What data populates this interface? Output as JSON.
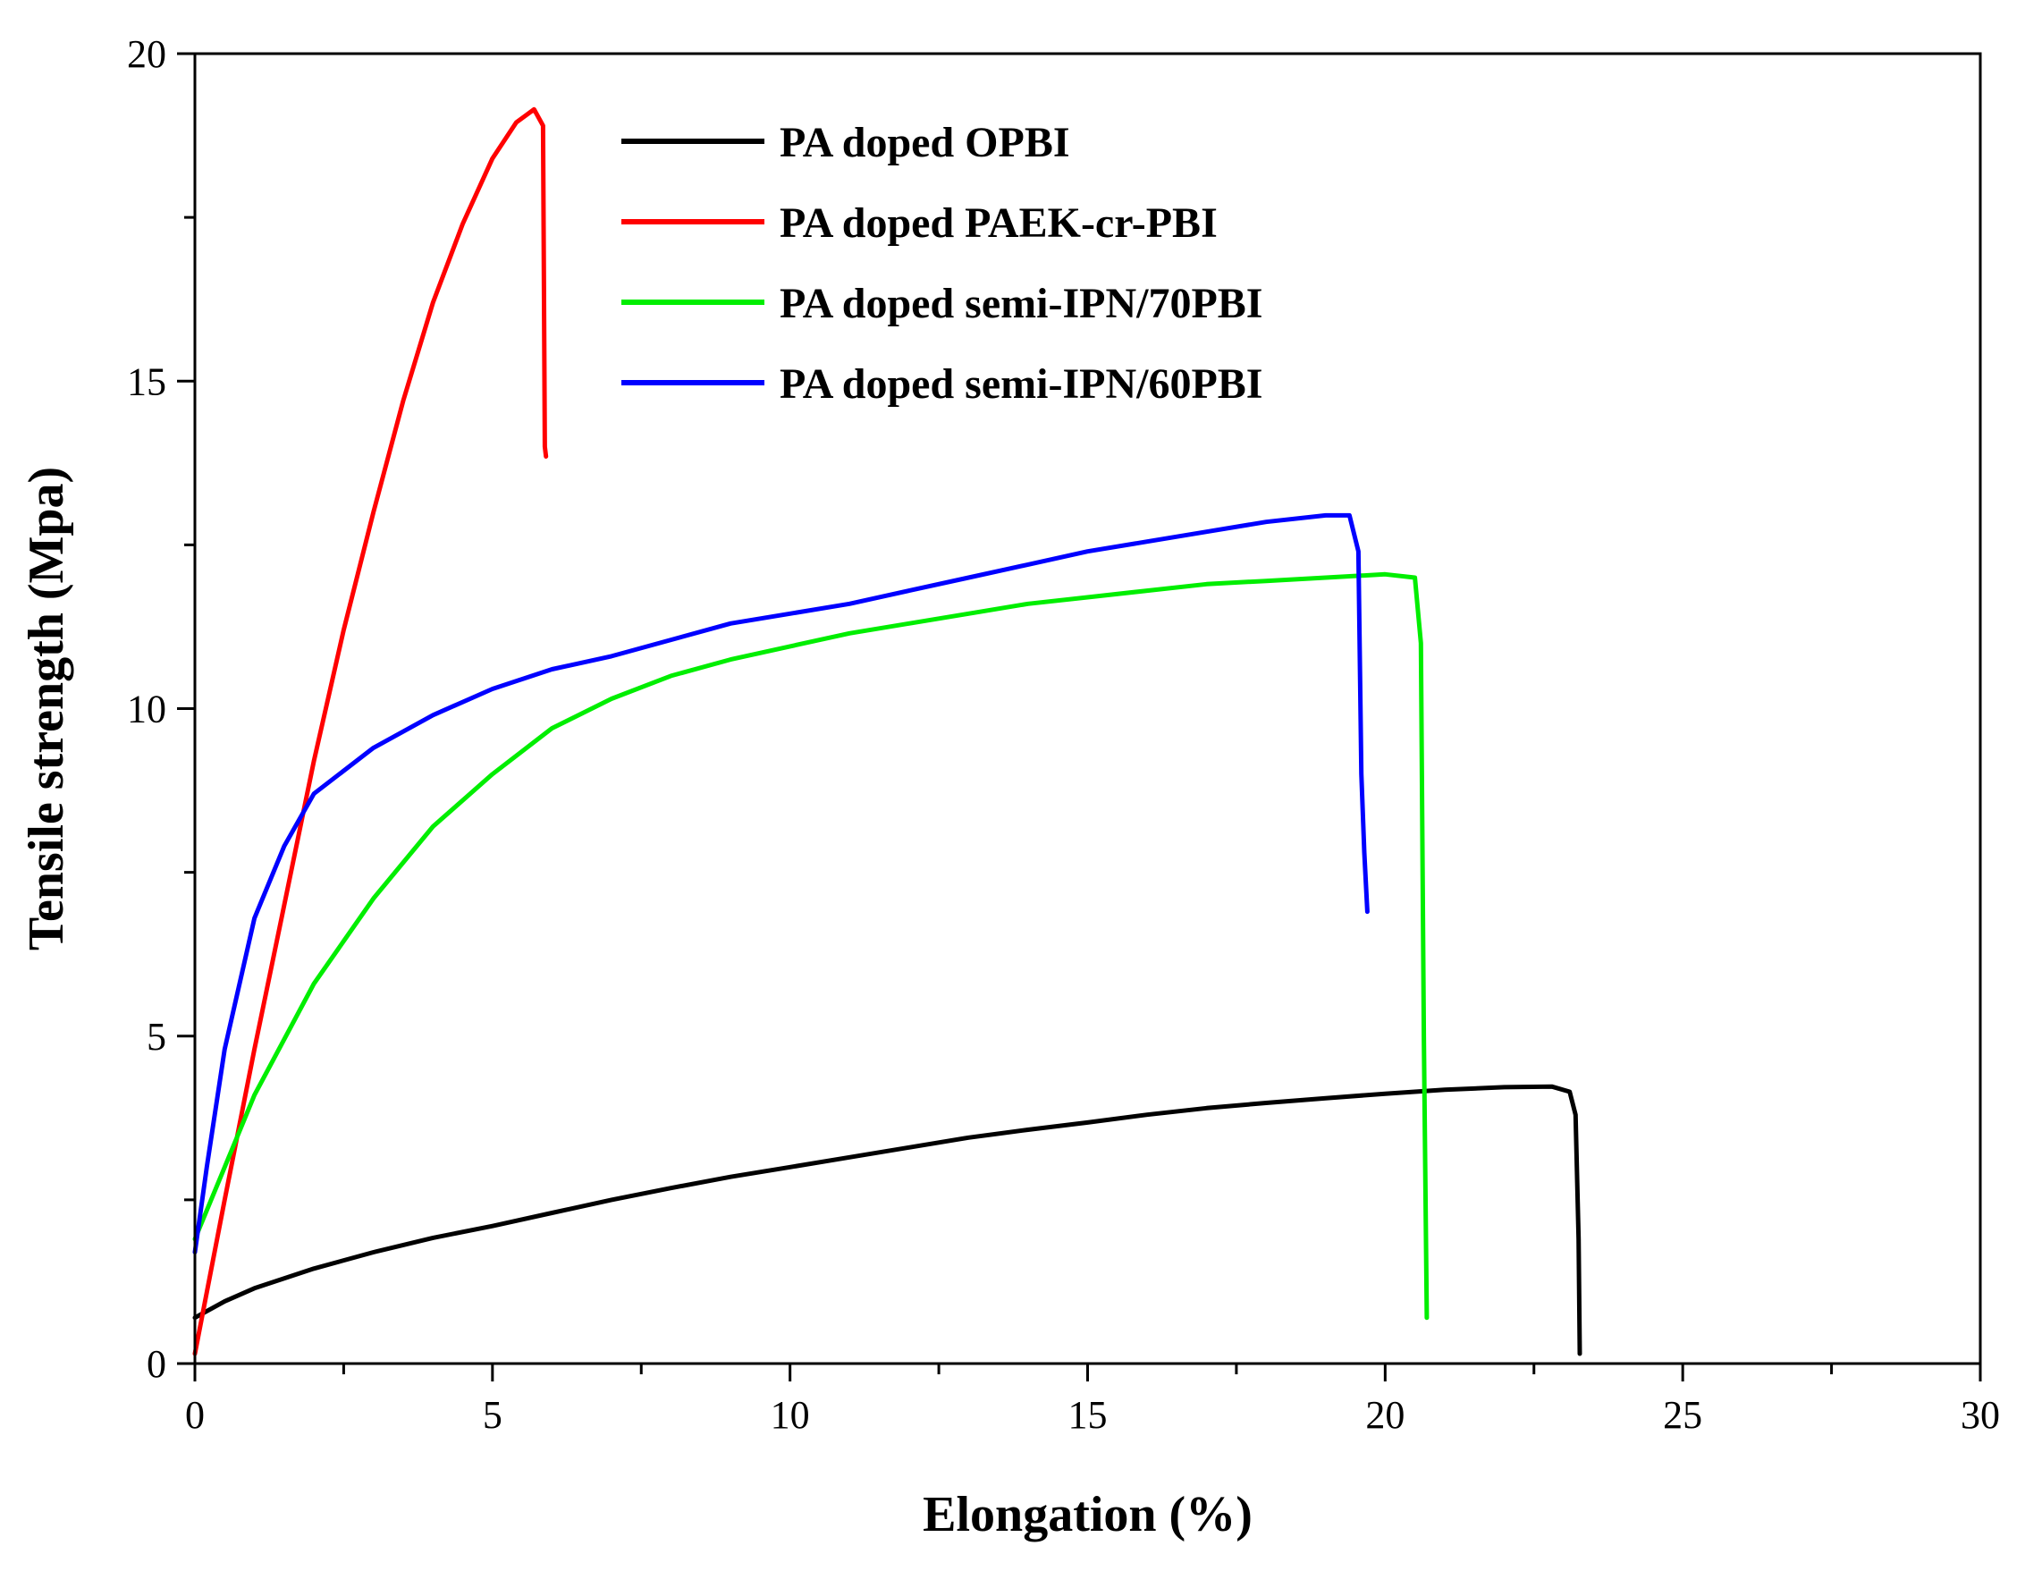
{
  "chart_data": {
    "type": "line",
    "title": "",
    "xlabel": "Elongation (%)",
    "ylabel": "Tensile strength (Mpa)",
    "xlim": [
      0,
      30
    ],
    "ylim": [
      0,
      20
    ],
    "xticks": [
      "0",
      "5",
      "10",
      "15",
      "20",
      "25",
      "30"
    ],
    "yticks": [
      "0",
      "5",
      "10",
      "15",
      "20"
    ],
    "grid": false,
    "legend_position": "top-center",
    "series": [
      {
        "name": "PA doped OPBI",
        "color": "#000000",
        "points": [
          [
            0,
            0.7
          ],
          [
            0.5,
            0.95
          ],
          [
            1,
            1.15
          ],
          [
            2,
            1.45
          ],
          [
            3,
            1.7
          ],
          [
            4,
            1.92
          ],
          [
            5,
            2.1
          ],
          [
            6,
            2.3
          ],
          [
            7,
            2.5
          ],
          [
            8,
            2.68
          ],
          [
            9,
            2.85
          ],
          [
            10,
            3.0
          ],
          [
            11,
            3.15
          ],
          [
            12,
            3.3
          ],
          [
            13,
            3.45
          ],
          [
            14,
            3.57
          ],
          [
            15,
            3.68
          ],
          [
            16,
            3.8
          ],
          [
            17,
            3.9
          ],
          [
            18,
            3.98
          ],
          [
            19,
            4.05
          ],
          [
            20,
            4.12
          ],
          [
            21,
            4.18
          ],
          [
            22,
            4.22
          ],
          [
            22.8,
            4.23
          ],
          [
            23.1,
            4.15
          ],
          [
            23.2,
            3.8
          ],
          [
            23.25,
            1.9
          ],
          [
            23.27,
            0.15
          ]
        ]
      },
      {
        "name": "PA doped PAEK-cr-PBI",
        "color": "#ff0000",
        "points": [
          [
            0,
            0.15
          ],
          [
            0.5,
            2.5
          ],
          [
            1,
            4.8
          ],
          [
            1.5,
            7.0
          ],
          [
            2,
            9.2
          ],
          [
            2.5,
            11.2
          ],
          [
            3,
            13.0
          ],
          [
            3.5,
            14.7
          ],
          [
            4,
            16.2
          ],
          [
            4.5,
            17.4
          ],
          [
            5,
            18.4
          ],
          [
            5.4,
            18.95
          ],
          [
            5.7,
            19.15
          ],
          [
            5.85,
            18.9
          ],
          [
            5.88,
            14.0
          ],
          [
            5.9,
            13.85
          ]
        ]
      },
      {
        "name": "PA doped semi-IPN/70PBI",
        "color": "#00ee00",
        "points": [
          [
            0,
            1.9
          ],
          [
            0.5,
            3.0
          ],
          [
            1,
            4.1
          ],
          [
            2,
            5.8
          ],
          [
            3,
            7.1
          ],
          [
            4,
            8.2
          ],
          [
            5,
            9.0
          ],
          [
            6,
            9.7
          ],
          [
            7,
            10.15
          ],
          [
            8,
            10.5
          ],
          [
            9,
            10.75
          ],
          [
            10,
            10.95
          ],
          [
            11,
            11.15
          ],
          [
            12,
            11.3
          ],
          [
            13,
            11.45
          ],
          [
            14,
            11.6
          ],
          [
            15,
            11.7
          ],
          [
            16,
            11.8
          ],
          [
            17,
            11.9
          ],
          [
            18,
            11.95
          ],
          [
            19,
            12.0
          ],
          [
            20,
            12.05
          ],
          [
            20.5,
            12.0
          ],
          [
            20.6,
            11.0
          ],
          [
            20.65,
            5.0
          ],
          [
            20.7,
            0.7
          ]
        ]
      },
      {
        "name": "PA doped semi-IPN/60PBI",
        "color": "#0000ff",
        "points": [
          [
            0,
            1.7
          ],
          [
            0.2,
            3.0
          ],
          [
            0.5,
            4.8
          ],
          [
            1,
            6.8
          ],
          [
            1.5,
            7.9
          ],
          [
            2,
            8.7
          ],
          [
            3,
            9.4
          ],
          [
            4,
            9.9
          ],
          [
            5,
            10.3
          ],
          [
            6,
            10.6
          ],
          [
            7,
            10.8
          ],
          [
            8,
            11.05
          ],
          [
            9,
            11.3
          ],
          [
            10,
            11.45
          ],
          [
            11,
            11.6
          ],
          [
            12,
            11.8
          ],
          [
            13,
            12.0
          ],
          [
            14,
            12.2
          ],
          [
            15,
            12.4
          ],
          [
            16,
            12.55
          ],
          [
            17,
            12.7
          ],
          [
            18,
            12.85
          ],
          [
            19,
            12.95
          ],
          [
            19.4,
            12.95
          ],
          [
            19.55,
            12.4
          ],
          [
            19.6,
            9.0
          ],
          [
            19.65,
            7.8
          ],
          [
            19.7,
            6.9
          ]
        ]
      }
    ]
  }
}
